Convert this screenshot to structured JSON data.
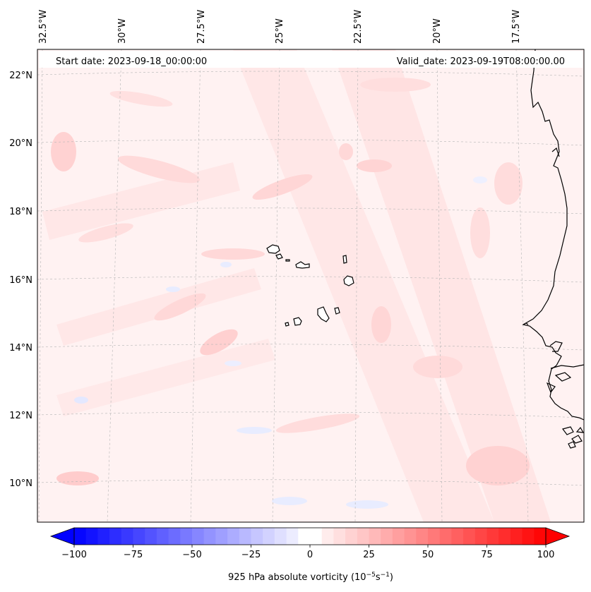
{
  "header": {
    "start_date": "Start date: 2023-09-18_00:00:00",
    "valid_date": "Valid_date: 2023-09-19T08:00:00.00"
  },
  "lon_labels": [
    "32.5°W",
    "30°W",
    "27.5°W",
    "25°W",
    "22.5°W",
    "20°W",
    "17.5°W"
  ],
  "lat_labels": [
    "22°N",
    "20°N",
    "18°N",
    "16°N",
    "14°N",
    "12°N",
    "10°N"
  ],
  "colorbar": {
    "ticks": [
      "−100",
      "−75",
      "−50",
      "−25",
      "0",
      "25",
      "50",
      "75",
      "100"
    ],
    "label": "925 hPa absolute vorticity (10",
    "label_exp1": "−5",
    "label_mid": "s",
    "label_exp2": "−1",
    "label_end": ")",
    "min": -100,
    "max": 100,
    "levels": 40
  },
  "colors": {
    "negative_max": "#0000ff",
    "positive_max": "#ff0000",
    "coast": "#000000"
  }
}
